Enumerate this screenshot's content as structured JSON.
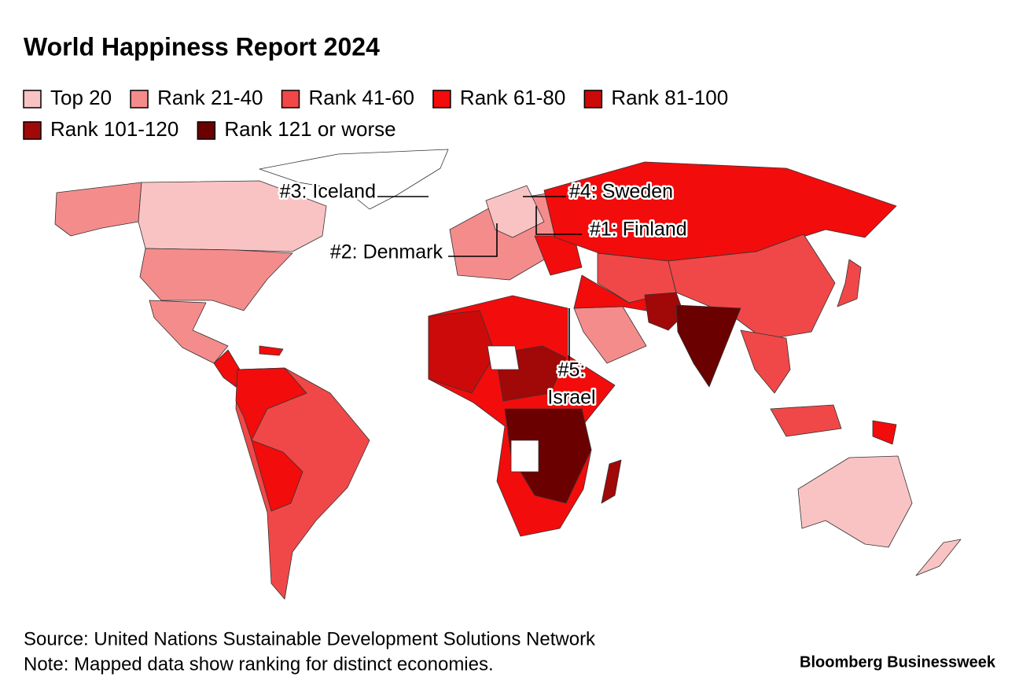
{
  "title": "World Happiness Report 2024",
  "legend": {
    "items": [
      {
        "label": "Top 20",
        "color": "#fac3c3"
      },
      {
        "label": "Rank 21-40",
        "color": "#f58c8c"
      },
      {
        "label": "Rank 41-60",
        "color": "#f04848"
      },
      {
        "label": "Rank 61-80",
        "color": "#f20c0c"
      },
      {
        "label": "Rank 81-100",
        "color": "#cc0a0a"
      },
      {
        "label": "Rank 101-120",
        "color": "#a10808"
      },
      {
        "label": "Rank 121 or worse",
        "color": "#6b0000"
      }
    ]
  },
  "annotations": [
    {
      "lines": [
        "#3: Iceland"
      ]
    },
    {
      "lines": [
        "#4: Sweden"
      ]
    },
    {
      "lines": [
        "#1: Finland"
      ]
    },
    {
      "lines": [
        "#2: Denmark"
      ]
    },
    {
      "lines": [
        "#5:",
        "Israel"
      ]
    }
  ],
  "footer": {
    "source": "Source: United Nations Sustainable Development Solutions Network",
    "note": "Note: Mapped data show ranking for distinct economies."
  },
  "brand": "Bloomberg Businessweek"
}
